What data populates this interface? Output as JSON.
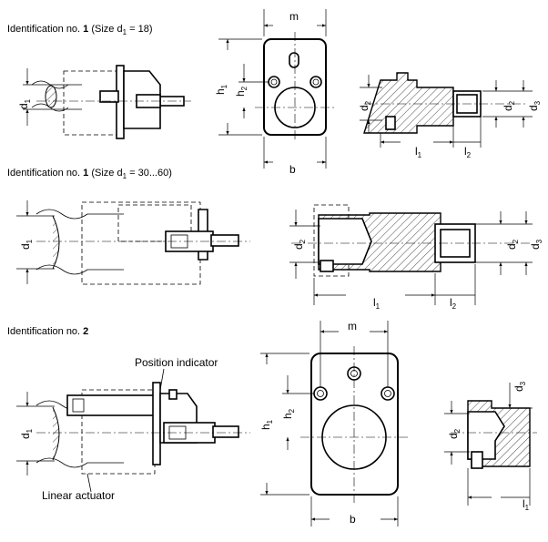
{
  "captions": [
    {
      "prefix": "Identification no. ",
      "num": "1",
      "rest": " (Size d",
      "sub": "1",
      "tail": " = 18)"
    },
    {
      "prefix": "Identification no. ",
      "num": "1",
      "rest": " (Size d",
      "sub": "1",
      "tail": " = 30...60)"
    },
    {
      "prefix": "Identification no. ",
      "num": "2",
      "rest": "",
      "sub": "",
      "tail": ""
    }
  ],
  "labels": {
    "m": "m",
    "b": "b",
    "h": "h",
    "d": "d",
    "l": "l",
    "s1": "1",
    "s2": "2",
    "s3": "3",
    "position_indicator": "Position indicator",
    "linear_actuator": "Linear actuator"
  }
}
